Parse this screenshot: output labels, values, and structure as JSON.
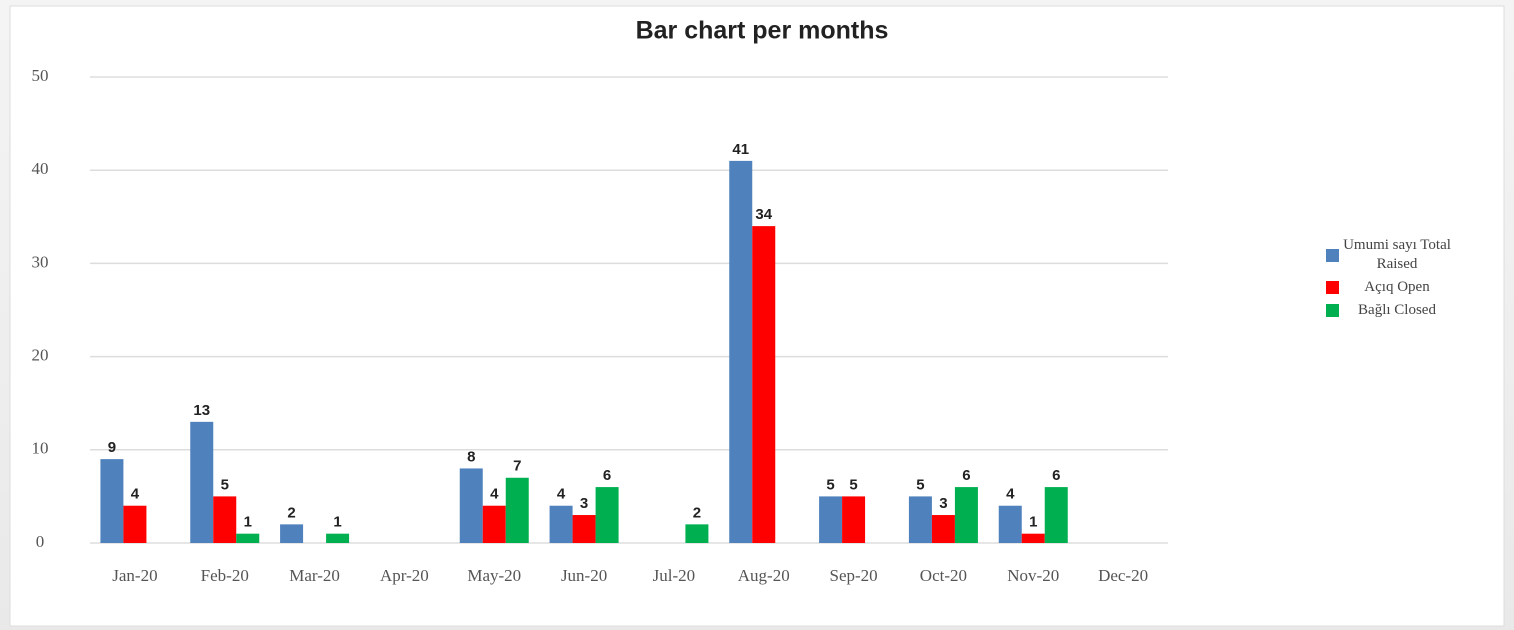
{
  "chart_data": {
    "type": "bar",
    "title": "Bar chart per months",
    "categories": [
      "Jan-20",
      "Feb-20",
      "Mar-20",
      "Apr-20",
      "May-20",
      "Jun-20",
      "Jul-20",
      "Aug-20",
      "Sep-20",
      "Oct-20",
      "Nov-20",
      "Dec-20"
    ],
    "series": [
      {
        "name": "Umumi sayı Total Raised",
        "color": "#4f81bd",
        "values": [
          9,
          13,
          2,
          null,
          8,
          4,
          null,
          41,
          5,
          5,
          4,
          null
        ]
      },
      {
        "name": "Açıq Open",
        "color": "#ff0000",
        "values": [
          4,
          5,
          null,
          null,
          4,
          3,
          null,
          34,
          5,
          3,
          1,
          null
        ]
      },
      {
        "name": "Bağlı Closed",
        "color": "#00b050",
        "values": [
          null,
          1,
          1,
          null,
          7,
          6,
          2,
          null,
          null,
          6,
          6,
          null
        ]
      }
    ],
    "ylim": [
      0,
      50
    ],
    "yticks": [
      0,
      10,
      20,
      30,
      40,
      50
    ],
    "grid": true,
    "legend": "right"
  }
}
